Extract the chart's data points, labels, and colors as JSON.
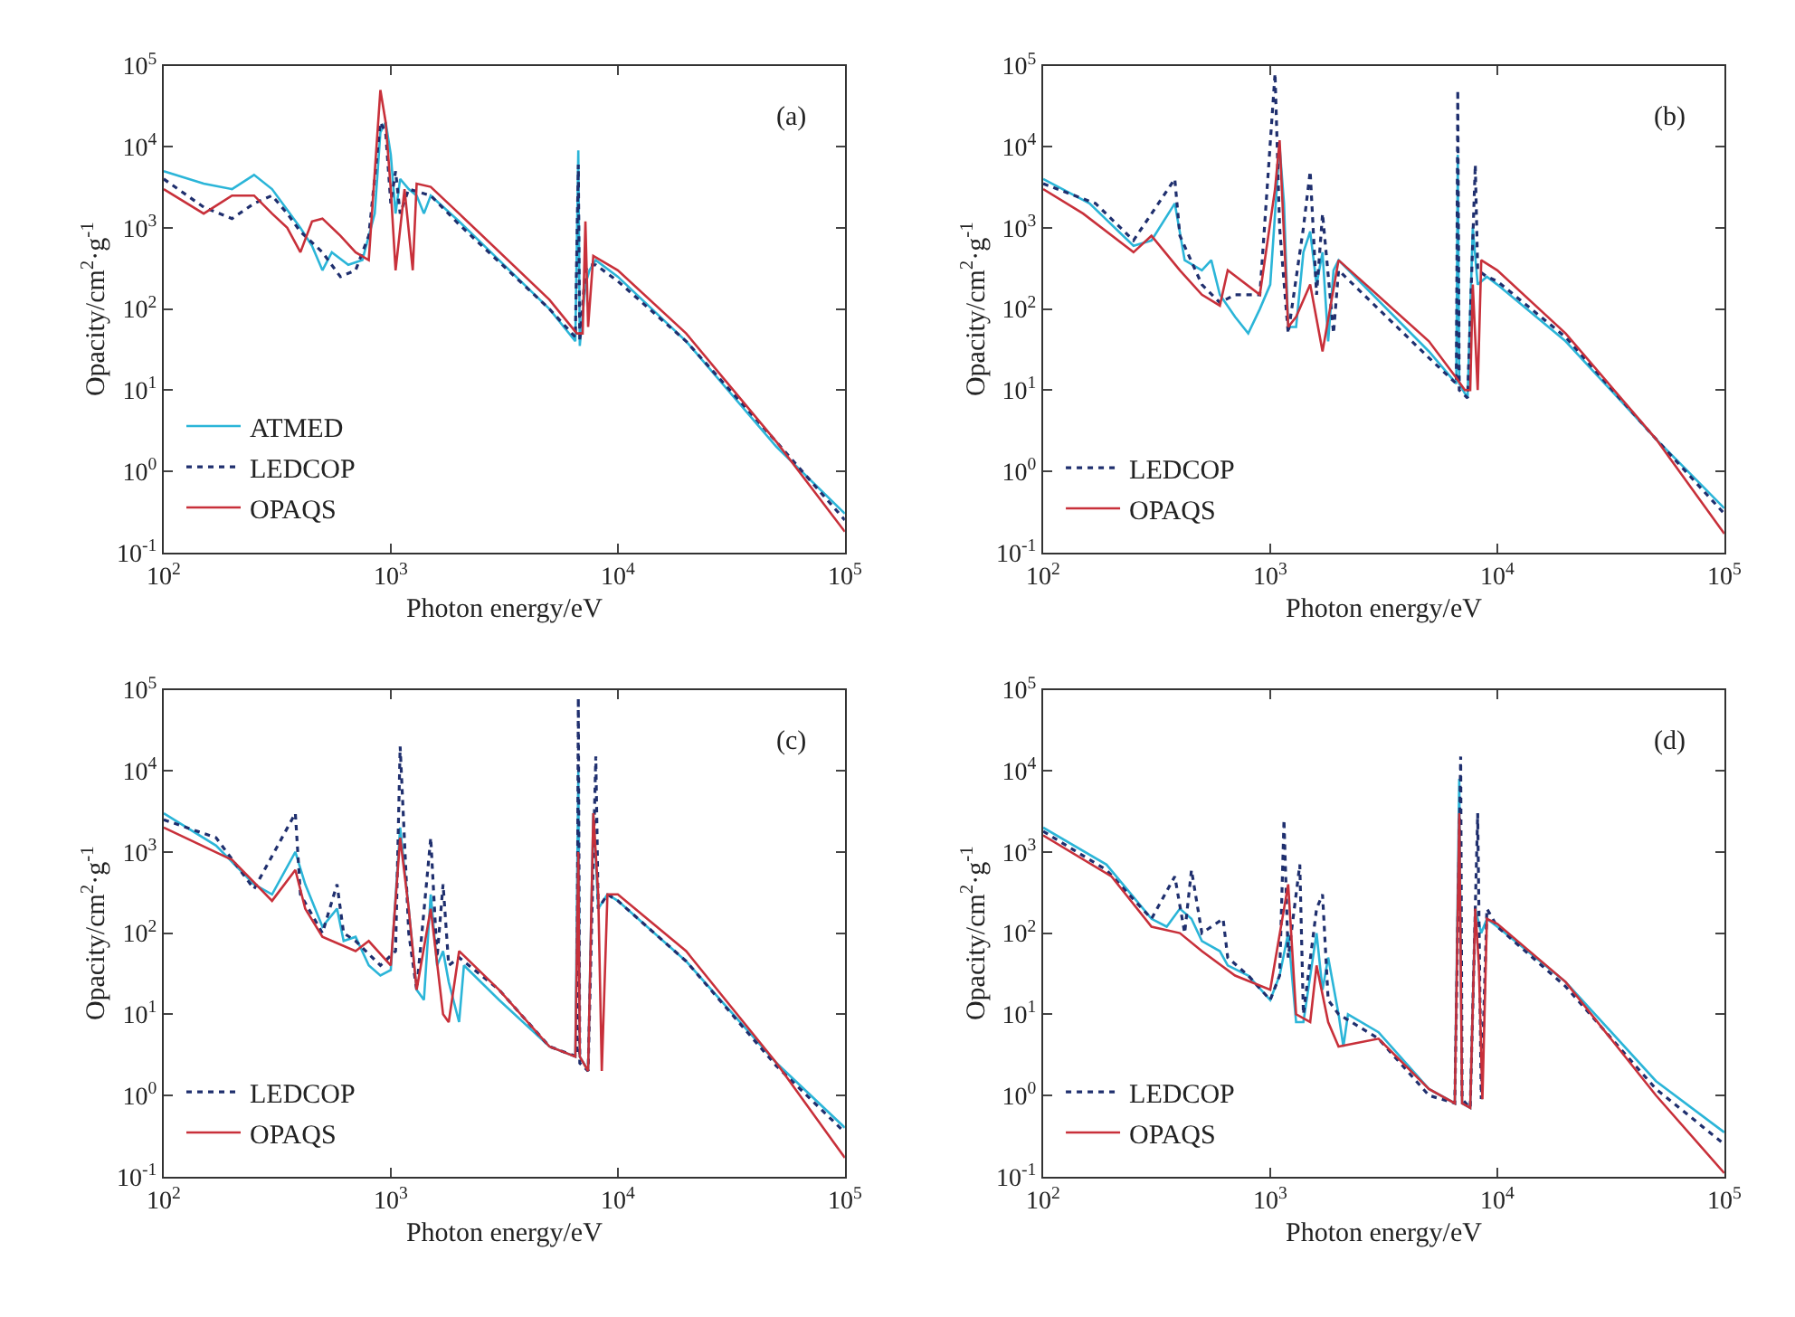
{
  "chart_data": [
    {
      "type": "line",
      "annotations": [
        "(a)"
      ],
      "xlabel": "Photon energy/eV",
      "ylabel": "Opacity/cm$^{2}$·g$^{-1}$",
      "log": "xy",
      "legend": "bottom left",
      "xlim": [
        100,
        100000
      ],
      "ylim": [
        0.1,
        100000
      ],
      "xticks": [
        {
          "value": 100,
          "label": "10$^{2}$"
        },
        {
          "value": 1000,
          "label": "10$^{3}$"
        },
        {
          "value": 10000,
          "label": "10$^{4}$"
        },
        {
          "value": 100000,
          "label": "10$^{5}$"
        }
      ],
      "yticks": [
        {
          "value": 0.1,
          "label": "10$^{-1}$"
        },
        {
          "value": 1,
          "label": "10$^{0}$"
        },
        {
          "value": 10,
          "label": "10$^{1}$"
        },
        {
          "value": 100,
          "label": "10$^{2}$"
        },
        {
          "value": 1000,
          "label": "10$^{3}$"
        },
        {
          "value": 10000,
          "label": "10$^{4}$"
        },
        {
          "value": 100000,
          "label": "10$^{5}$"
        }
      ],
      "series": [
        {
          "name": "ATMED",
          "color": "#2bb5d8",
          "line_style": "solid",
          "x": [
            100,
            150,
            200,
            250,
            300,
            400,
            450,
            500,
            550,
            650,
            750,
            850,
            900,
            950,
            1000,
            1050,
            1100,
            1200,
            1300,
            1400,
            1500,
            2000,
            3000,
            5000,
            6500,
            6700,
            6800,
            7200,
            7500,
            8000,
            10000,
            20000,
            50000,
            100000
          ],
          "values": [
            5000,
            3500,
            3000,
            4500,
            3000,
            1000,
            600,
            300,
            500,
            350,
            400,
            1500,
            15000,
            20000,
            8000,
            1500,
            4000,
            3000,
            2500,
            1500,
            2500,
            1200,
            400,
            100,
            40,
            9000,
            35,
            200,
            300,
            400,
            250,
            40,
            2,
            0.3
          ]
        },
        {
          "name": "LEDCOP",
          "color": "#1f2f6e",
          "line_style": "dotted",
          "x": [
            100,
            150,
            200,
            250,
            300,
            350,
            400,
            500,
            600,
            700,
            800,
            900,
            950,
            1000,
            1050,
            1100,
            1200,
            1500,
            2000,
            5000,
            6500,
            6700,
            6800,
            7200,
            7500,
            8000,
            10000,
            20000,
            50000,
            100000
          ],
          "values": [
            4000,
            1800,
            1300,
            2000,
            2500,
            1500,
            900,
            500,
            250,
            300,
            800,
            20000,
            15000,
            2000,
            5000,
            1500,
            3000,
            2500,
            1100,
            100,
            45,
            6000,
            40,
            300,
            350,
            350,
            220,
            40,
            2.3,
            0.25
          ]
        },
        {
          "name": "OPAQS",
          "color": "#c8303a",
          "line_style": "solid",
          "x": [
            100,
            150,
            200,
            250,
            300,
            350,
            400,
            450,
            500,
            600,
            700,
            800,
            900,
            950,
            1000,
            1050,
            1150,
            1250,
            1300,
            1500,
            2000,
            5000,
            6600,
            7000,
            7200,
            7400,
            7800,
            10000,
            20000,
            50000,
            100000
          ],
          "values": [
            3000,
            1500,
            2500,
            2500,
            1500,
            1000,
            500,
            1200,
            1300,
            800,
            500,
            400,
            50000,
            20000,
            3000,
            300,
            3000,
            300,
            3500,
            3200,
            1500,
            130,
            50,
            50,
            1200,
            60,
            450,
            300,
            50,
            2.3,
            0.18
          ]
        }
      ]
    },
    {
      "type": "line",
      "annotations": [
        "(b)"
      ],
      "xlabel": "Photon energy/eV",
      "ylabel": "Opacity/cm$^{2}$·g$^{-1}$",
      "log": "xy",
      "legend": "bottom left",
      "xlim": [
        100,
        100000
      ],
      "ylim": [
        0.1,
        100000
      ],
      "xticks": [
        {
          "value": 100,
          "label": "10$^{2}$"
        },
        {
          "value": 1000,
          "label": "10$^{3}$"
        },
        {
          "value": 10000,
          "label": "10$^{4}$"
        },
        {
          "value": 100000,
          "label": "10$^{5}$"
        }
      ],
      "yticks": [
        {
          "value": 0.1,
          "label": "10$^{-1}$"
        },
        {
          "value": 1,
          "label": "10$^{0}$"
        },
        {
          "value": 10,
          "label": "10$^{1}$"
        },
        {
          "value": 100,
          "label": "10$^{2}$"
        },
        {
          "value": 1000,
          "label": "10$^{3}$"
        },
        {
          "value": 10000,
          "label": "10$^{4}$"
        },
        {
          "value": 100000,
          "label": "10$^{5}$"
        }
      ],
      "series": [
        {
          "color": "#2bb5d8",
          "line_style": "solid",
          "x": [
            100,
            160,
            250,
            300,
            380,
            420,
            500,
            550,
            600,
            700,
            800,
            900,
            1000,
            1100,
            1150,
            1200,
            1300,
            1400,
            1500,
            1600,
            1700,
            1800,
            1900,
            2000,
            5000,
            6600,
            6700,
            6800,
            7400,
            7800,
            8200,
            9000,
            10000,
            20000,
            50000,
            100000
          ],
          "values": [
            4000,
            2000,
            600,
            700,
            2000,
            400,
            300,
            400,
            150,
            80,
            50,
            100,
            200,
            10000,
            2000,
            60,
            60,
            500,
            900,
            200,
            500,
            40,
            300,
            400,
            30,
            12,
            8000,
            12,
            8,
            1000,
            200,
            250,
            200,
            40,
            2.5,
            0.35
          ]
        },
        {
          "name": "LEDCOP",
          "color": "#1f2f6e",
          "line_style": "dotted",
          "x": [
            100,
            170,
            250,
            380,
            400,
            500,
            600,
            700,
            900,
            1050,
            1100,
            1200,
            1400,
            1500,
            1600,
            1700,
            1900,
            2000,
            5000,
            6600,
            6700,
            6800,
            7400,
            8000,
            8200,
            9000,
            10000,
            20000,
            50000,
            100000
          ],
          "values": [
            3500,
            2000,
            700,
            4000,
            800,
            200,
            120,
            150,
            150,
            80000,
            1000,
            50,
            1000,
            5000,
            150,
            1500,
            50,
            300,
            25,
            12,
            50000,
            10,
            8,
            6000,
            300,
            250,
            220,
            45,
            2.5,
            0.3
          ]
        },
        {
          "name": "OPAQS",
          "color": "#c8303a",
          "line_style": "solid",
          "x": [
            100,
            150,
            250,
            300,
            400,
            500,
            600,
            650,
            900,
            1050,
            1100,
            1200,
            1300,
            1500,
            1700,
            2000,
            5000,
            6500,
            7200,
            7600,
            7800,
            8200,
            8500,
            10000,
            20000,
            50000,
            100000
          ],
          "values": [
            3000,
            1500,
            500,
            800,
            300,
            150,
            110,
            300,
            150,
            3000,
            12000,
            60,
            80,
            200,
            30,
            400,
            40,
            15,
            10,
            10,
            200,
            10,
            400,
            300,
            50,
            2.5,
            0.17
          ]
        }
      ]
    },
    {
      "type": "line",
      "annotations": [
        "(c)"
      ],
      "xlabel": "Photon energy/eV",
      "ylabel": "Opacity/cm$^{2}$·g$^{-1}$",
      "log": "xy",
      "legend": "bottom left",
      "xlim": [
        100,
        100000
      ],
      "ylim": [
        0.1,
        100000
      ],
      "xticks": [
        {
          "value": 100,
          "label": "10$^{2}$"
        },
        {
          "value": 1000,
          "label": "10$^{3}$"
        },
        {
          "value": 10000,
          "label": "10$^{4}$"
        },
        {
          "value": 100000,
          "label": "10$^{5}$"
        }
      ],
      "yticks": [
        {
          "value": 0.1,
          "label": "10$^{-1}$"
        },
        {
          "value": 1,
          "label": "10$^{0}$"
        },
        {
          "value": 10,
          "label": "10$^{1}$"
        },
        {
          "value": 100,
          "label": "10$^{2}$"
        },
        {
          "value": 1000,
          "label": "10$^{3}$"
        },
        {
          "value": 10000,
          "label": "10$^{4}$"
        },
        {
          "value": 100000,
          "label": "10$^{5}$"
        }
      ],
      "series": [
        {
          "color": "#2bb5d8",
          "line_style": "solid",
          "x": [
            100,
            170,
            250,
            300,
            380,
            420,
            500,
            580,
            620,
            700,
            800,
            900,
            1000,
            1100,
            1200,
            1300,
            1400,
            1500,
            1600,
            1700,
            1800,
            2000,
            2100,
            3000,
            5000,
            6500,
            6700,
            6800,
            7400,
            7800,
            8200,
            9000,
            10000,
            20000,
            50000,
            100000
          ],
          "values": [
            3000,
            1200,
            400,
            300,
            1000,
            400,
            120,
            200,
            80,
            90,
            40,
            30,
            35,
            2000,
            200,
            20,
            15,
            300,
            40,
            60,
            25,
            8,
            40,
            15,
            4,
            3,
            10000,
            3,
            2,
            3000,
            200,
            300,
            250,
            45,
            2.5,
            0.4
          ]
        },
        {
          "name": "LEDCOP",
          "color": "#1f2f6e",
          "line_style": "dotted",
          "x": [
            100,
            170,
            250,
            380,
            400,
            500,
            580,
            620,
            700,
            900,
            1050,
            1100,
            1200,
            1300,
            1500,
            1600,
            1700,
            1800,
            2000,
            3000,
            5000,
            6600,
            6700,
            6800,
            7400,
            8000,
            8200,
            9000,
            10000,
            20000,
            50000,
            100000
          ],
          "values": [
            2500,
            1500,
            350,
            3000,
            300,
            100,
            400,
            100,
            80,
            40,
            60,
            20000,
            100,
            20,
            1500,
            50,
            400,
            40,
            50,
            20,
            4,
            3,
            80000,
            2.5,
            2,
            15000,
            200,
            300,
            250,
            45,
            2.3,
            0.35
          ]
        },
        {
          "name": "OPAQS",
          "color": "#c8303a",
          "line_style": "solid",
          "x": [
            100,
            200,
            300,
            380,
            420,
            500,
            700,
            800,
            1000,
            1100,
            1200,
            1300,
            1500,
            1700,
            1800,
            2000,
            3000,
            5000,
            6500,
            6700,
            6800,
            7400,
            7800,
            8200,
            8500,
            9000,
            10000,
            20000,
            50000,
            100000
          ],
          "values": [
            2000,
            800,
            250,
            600,
            200,
            90,
            60,
            80,
            40,
            1500,
            200,
            20,
            200,
            10,
            8,
            60,
            20,
            4,
            3,
            1000,
            3,
            2,
            3000,
            300,
            2,
            300,
            300,
            60,
            2.5,
            0.17
          ]
        }
      ]
    },
    {
      "type": "line",
      "annotations": [
        "(d)"
      ],
      "xlabel": "Photon energy/eV",
      "ylabel": "Opacity/cm$^{2}$·g$^{-1}$",
      "log": "xy",
      "legend": "bottom left",
      "xlim": [
        100,
        100000
      ],
      "ylim": [
        0.1,
        100000
      ],
      "xticks": [
        {
          "value": 100,
          "label": "10$^{2}$"
        },
        {
          "value": 1000,
          "label": "10$^{3}$"
        },
        {
          "value": 10000,
          "label": "10$^{4}$"
        },
        {
          "value": 100000,
          "label": "10$^{5}$"
        }
      ],
      "yticks": [
        {
          "value": 0.1,
          "label": "10$^{-1}$"
        },
        {
          "value": 1,
          "label": "10$^{0}$"
        },
        {
          "value": 10,
          "label": "10$^{1}$"
        },
        {
          "value": 100,
          "label": "10$^{2}$"
        },
        {
          "value": 1000,
          "label": "10$^{3}$"
        },
        {
          "value": 10000,
          "label": "10$^{4}$"
        },
        {
          "value": 100000,
          "label": "10$^{5}$"
        }
      ],
      "series": [
        {
          "color": "#2bb5d8",
          "line_style": "solid",
          "x": [
            100,
            190,
            300,
            350,
            400,
            450,
            500,
            600,
            650,
            800,
            1000,
            1100,
            1200,
            1300,
            1400,
            1600,
            1700,
            1800,
            2000,
            2100,
            2200,
            3000,
            5000,
            6500,
            6800,
            7000,
            7600,
            8000,
            8500,
            9000,
            10000,
            20000,
            50000,
            100000
          ],
          "values": [
            2000,
            700,
            150,
            120,
            200,
            150,
            80,
            60,
            40,
            30,
            15,
            30,
            100,
            8,
            8,
            100,
            20,
            50,
            10,
            4,
            10,
            6,
            1.2,
            0.8,
            8000,
            0.8,
            0.7,
            200,
            100,
            150,
            120,
            25,
            1.5,
            0.35
          ]
        },
        {
          "name": "LEDCOP",
          "color": "#1f2f6e",
          "line_style": "dotted",
          "x": [
            100,
            190,
            300,
            380,
            420,
            450,
            500,
            620,
            650,
            800,
            1000,
            1100,
            1150,
            1200,
            1350,
            1400,
            1600,
            1700,
            1800,
            2000,
            3000,
            5000,
            6500,
            6900,
            7000,
            7600,
            8200,
            8500,
            9000,
            10000,
            20000,
            50000,
            100000
          ],
          "values": [
            1800,
            600,
            150,
            500,
            100,
            600,
            100,
            150,
            50,
            30,
            15,
            30,
            2500,
            50,
            700,
            10,
            200,
            300,
            15,
            10,
            5,
            1,
            0.8,
            15000,
            0.9,
            0.7,
            3000,
            0.9,
            200,
            120,
            22,
            1.2,
            0.25
          ]
        },
        {
          "name": "OPAQS",
          "color": "#c8303a",
          "line_style": "solid",
          "x": [
            100,
            200,
            300,
            400,
            500,
            700,
            1000,
            1200,
            1300,
            1500,
            1600,
            1800,
            2000,
            3000,
            5000,
            6500,
            6800,
            7000,
            7600,
            8000,
            8300,
            8600,
            9000,
            10000,
            20000,
            50000,
            100000
          ],
          "values": [
            1600,
            500,
            120,
            100,
            60,
            30,
            20,
            400,
            10,
            8,
            40,
            8,
            4,
            5,
            1.2,
            0.8,
            3000,
            0.8,
            0.7,
            200,
            40,
            0.9,
            150,
            130,
            25,
            1,
            0.11
          ]
        }
      ]
    }
  ]
}
